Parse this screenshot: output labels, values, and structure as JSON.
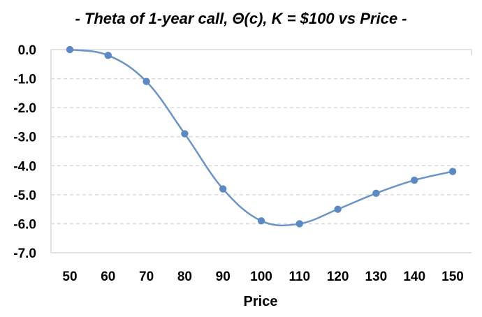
{
  "chart_data": {
    "type": "line",
    "title": "- Theta of 1-year call,  Θ(c), K = $100 vs Price -",
    "xlabel": "Price",
    "ylabel": "",
    "categories": [
      "50",
      "60",
      "70",
      "80",
      "90",
      "100",
      "110",
      "120",
      "130",
      "140",
      "150"
    ],
    "series": [
      {
        "values": [
          0.0,
          -0.2,
          -1.1,
          -2.9,
          -4.8,
          -5.9,
          -6.0,
          -5.5,
          -4.95,
          -4.5,
          -4.2
        ]
      }
    ],
    "ylim": [
      -7.0,
      0.0
    ],
    "yticks": [
      "0.0",
      "-1.0",
      "-2.0",
      "-3.0",
      "-4.0",
      "-5.0",
      "-6.0",
      "-7.0"
    ],
    "grid": "horizontal dashed",
    "colors": {
      "line": "#6a93c8",
      "marker": "#5b89c4",
      "grid": "#d9d9d9",
      "axis": "#d9d9d9",
      "text": "#000000"
    }
  }
}
